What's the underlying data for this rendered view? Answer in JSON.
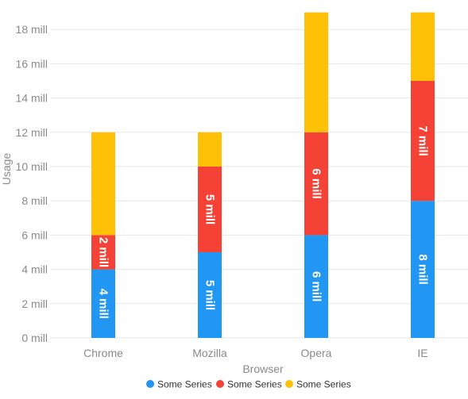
{
  "chart_data": {
    "type": "bar",
    "stacked": true,
    "title": "",
    "xlabel": "Browser",
    "ylabel": "Usage",
    "ylim": [
      0,
      19
    ],
    "y_ticks": [
      0,
      2,
      4,
      6,
      8,
      10,
      12,
      14,
      16,
      18
    ],
    "tick_labels": {
      "y": [
        "0 mill",
        "2 mill",
        "4 mill",
        "6 mill",
        "8 mill",
        "10 mill",
        "12 mill",
        "14 mill",
        "16 mill",
        "18 mill"
      ]
    },
    "categories": [
      "Chrome",
      "Mozilla",
      "Opera",
      "IE"
    ],
    "grid": true,
    "legend_position": "bottom",
    "series": [
      {
        "name": "Some Series",
        "color": "#2196f3",
        "values": [
          4,
          5,
          6,
          8
        ],
        "labels": [
          "4 mill",
          "5 mill",
          "6 mill",
          "8 mill"
        ]
      },
      {
        "name": "Some Series",
        "color": "#f44336",
        "values": [
          2,
          5,
          6,
          7
        ],
        "labels": [
          "2 mill",
          "5 mill",
          "6 mill",
          "7 mill"
        ]
      },
      {
        "name": "Some Series",
        "color": "#ffc107",
        "values": [
          6,
          2,
          7,
          4
        ],
        "labels": [
          "",
          "",
          "",
          ""
        ]
      }
    ]
  },
  "colors": {
    "grid": "#e6e6e6",
    "axis_text": "#8a8a8a",
    "legend_text": "#333333",
    "data_label": "#ffffff"
  }
}
